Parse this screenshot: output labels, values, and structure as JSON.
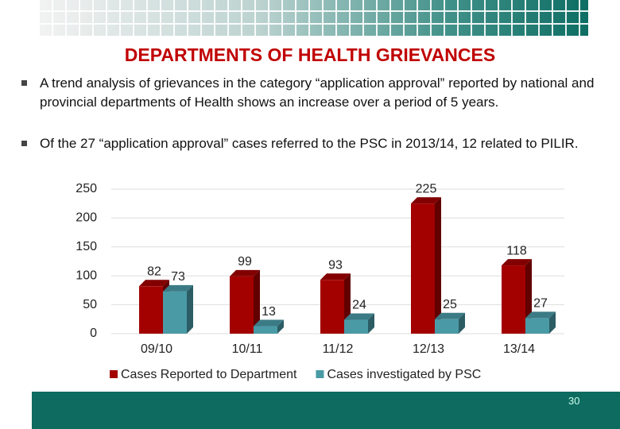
{
  "slide": {
    "title": "DEPARTMENTS OF HEALTH GRIEVANCES",
    "bullets": [
      "A trend analysis of grievances in the category “application approval” reported by national and provincial departments of Health shows an increase over a period of 5 years.",
      "Of the 27 “application approval” cases referred to the PSC in 2013/14, 12 related to PILIR."
    ],
    "page_number": "30"
  },
  "chart_data": {
    "type": "bar",
    "categories": [
      "09/10",
      "10/11",
      "11/12",
      "12/13",
      "13/14"
    ],
    "series": [
      {
        "name": "Cases Reported to Department",
        "color": "#a30000",
        "values": [
          82,
          99,
          93,
          225,
          118
        ]
      },
      {
        "name": "Cases investigated by PSC",
        "color": "#4a9aa6",
        "values": [
          73,
          13,
          24,
          25,
          27
        ]
      }
    ],
    "ylim": [
      0,
      250
    ],
    "yticks": [
      0,
      50,
      100,
      150,
      200,
      250
    ],
    "grid": true,
    "legend": "bottom"
  }
}
